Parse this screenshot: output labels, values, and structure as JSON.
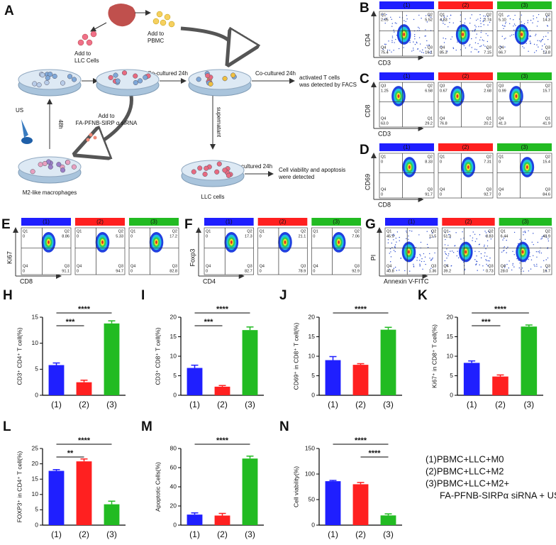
{
  "schematic": {
    "letter": "A",
    "add_llc": [
      "Add to",
      "LLC Cells"
    ],
    "add_pbmc": [
      "Add to",
      "PBMC"
    ],
    "cocultured_1": "Co-cultured 24h",
    "cocultured_2": "Co-cultured 24h",
    "facs": [
      "activated T cells",
      "was detected by FACS"
    ],
    "supernatant": "supernatant",
    "add_sirna": [
      "Add to",
      "FA-PFNB-SIRP α siRNA"
    ],
    "time_48h": "48h",
    "us": "US",
    "macrophages": "M2-like macrophages",
    "cultured": "cultured 24h",
    "viability": [
      "Cell viability and apoptosis",
      "were detected"
    ],
    "llc_cells": "LLC cells"
  },
  "flow": [
    {
      "letter": "B",
      "x_label": "CD3",
      "y_label": "CD4",
      "plots": [
        {
          "group": "(1)",
          "color": "#1f1fff",
          "quadrants": [
            [
              "Q1",
              "2.95"
            ],
            [
              "Q2",
              "5.52"
            ],
            [
              "Q4",
              "75.4"
            ],
            [
              "Q3",
              "16.1"
            ]
          ]
        },
        {
          "group": "(2)",
          "color": "#ff2020",
          "quadrants": [
            [
              "Q1",
              "4.83"
            ],
            [
              "Q2",
              "2.74"
            ],
            [
              "Q4",
              "85.3"
            ],
            [
              "Q3",
              "7.15"
            ]
          ]
        },
        {
          "group": "(3)",
          "color": "#22bb22",
          "quadrants": [
            [
              "Q1",
              "5.10"
            ],
            [
              "Q2",
              "14.3"
            ],
            [
              "Q4",
              "66.7"
            ],
            [
              "Q3",
              "13.8"
            ]
          ]
        }
      ]
    },
    {
      "letter": "C",
      "x_label": "CD3",
      "y_label": "CD8",
      "plots": [
        {
          "group": "(1)",
          "color": "#1f1fff",
          "quadrants": [
            [
              "Q3",
              "1.25"
            ],
            [
              "Q2",
              "6.58"
            ],
            [
              "Q4",
              "63.0"
            ],
            [
              "Q1",
              "29.2"
            ]
          ]
        },
        {
          "group": "(2)",
          "color": "#ff2020",
          "quadrants": [
            [
              "Q3",
              "0.67"
            ],
            [
              "Q2",
              "2.68"
            ],
            [
              "Q4",
              "76.8"
            ],
            [
              "Q1",
              "20.2"
            ]
          ]
        },
        {
          "group": "(3)",
          "color": "#22bb22",
          "quadrants": [
            [
              "Q3",
              "0.99"
            ],
            [
              "Q2",
              "15.7"
            ],
            [
              "Q4",
              "41.3"
            ],
            [
              "Q1",
              "41.9"
            ]
          ]
        }
      ]
    },
    {
      "letter": "D",
      "x_label": "CD8",
      "y_label": "CD69",
      "plots": [
        {
          "group": "(1)",
          "color": "#1f1fff",
          "quadrants": [
            [
              "Q1",
              "0"
            ],
            [
              "Q2",
              "8.33"
            ],
            [
              "Q4",
              "0"
            ],
            [
              "Q3",
              "91.7"
            ]
          ]
        },
        {
          "group": "(2)",
          "color": "#ff2020",
          "quadrants": [
            [
              "Q1",
              "0"
            ],
            [
              "Q2",
              "7.31"
            ],
            [
              "Q4",
              "0"
            ],
            [
              "Q3",
              "92.7"
            ]
          ]
        },
        {
          "group": "(3)",
          "color": "#22bb22",
          "quadrants": [
            [
              "Q1",
              "0"
            ],
            [
              "Q2",
              "15.4"
            ],
            [
              "Q4",
              "0"
            ],
            [
              "Q3",
              "84.6"
            ]
          ]
        }
      ]
    },
    {
      "letter": "E",
      "x_label": "CD8",
      "y_label": "Ki67",
      "plots": [
        {
          "group": "(1)",
          "color": "#1f1fff",
          "quadrants": [
            [
              "Q1",
              "0"
            ],
            [
              "Q2",
              "8.86"
            ],
            [
              "Q4",
              "0"
            ],
            [
              "Q3",
              "91.1"
            ]
          ]
        },
        {
          "group": "(2)",
          "color": "#ff2020",
          "quadrants": [
            [
              "Q1",
              "0"
            ],
            [
              "Q2",
              "5.33"
            ],
            [
              "Q4",
              "0"
            ],
            [
              "Q3",
              "94.7"
            ]
          ]
        },
        {
          "group": "(3)",
          "color": "#22bb22",
          "quadrants": [
            [
              "Q1",
              "0"
            ],
            [
              "Q2",
              "17.2"
            ],
            [
              "Q4",
              "0"
            ],
            [
              "Q3",
              "82.8"
            ]
          ]
        }
      ]
    },
    {
      "letter": "F",
      "x_label": "CD4",
      "y_label": "Foxp3",
      "plots": [
        {
          "group": "(1)",
          "color": "#1f1fff",
          "quadrants": [
            [
              "Q1",
              "0"
            ],
            [
              "Q2",
              "17.3"
            ],
            [
              "Q4",
              "0"
            ],
            [
              "Q3",
              "82.7"
            ]
          ]
        },
        {
          "group": "(2)",
          "color": "#ff2020",
          "quadrants": [
            [
              "Q1",
              "0"
            ],
            [
              "Q2",
              "21.1"
            ],
            [
              "Q4",
              "0"
            ],
            [
              "Q3",
              "78.9"
            ]
          ]
        },
        {
          "group": "(3)",
          "color": "#22bb22",
          "quadrants": [
            [
              "Q1",
              "0"
            ],
            [
              "Q2",
              "7.06"
            ],
            [
              "Q4",
              "0"
            ],
            [
              "Q3",
              "92.9"
            ]
          ]
        }
      ]
    },
    {
      "letter": "G",
      "x_label": "Annexin V-FITC",
      "y_label": "PI",
      "plots": [
        {
          "group": "(1)",
          "color": "#1f1fff",
          "quadrants": [
            [
              "Q1",
              "45.9"
            ],
            [
              "Q2",
              "11.5"
            ],
            [
              "Q4",
              "40.8"
            ],
            [
              "Q3",
              "1.36"
            ]
          ]
        },
        {
          "group": "(2)",
          "color": "#ff2020",
          "quadrants": [
            [
              "Q1",
              "51.3"
            ],
            [
              "Q2",
              "8.83"
            ],
            [
              "Q4",
              "39.2"
            ],
            [
              "Q3",
              "0.73"
            ]
          ]
        },
        {
          "group": "(3)",
          "color": "#22bb22",
          "quadrants": [
            [
              "Q1",
              "6.44"
            ],
            [
              "Q2",
              "48.9"
            ],
            [
              "Q4",
              "28.0"
            ],
            [
              "Q3",
              "16.7"
            ]
          ]
        }
      ]
    }
  ],
  "chart_data": [
    {
      "type": "bar",
      "letter": "H",
      "y_label": "CD3⁺ CD4⁺ T cell(%)",
      "categories": [
        "(1)",
        "(2)",
        "(3)"
      ],
      "values": [
        5.8,
        2.5,
        13.8
      ],
      "errors": [
        0.4,
        0.4,
        0.5
      ],
      "colors": [
        "#1f1fff",
        "#ff2020",
        "#22bb22"
      ],
      "ylim": [
        0,
        15
      ],
      "yticks": [
        0,
        5,
        10,
        15
      ],
      "significance": [
        {
          "between": [
            "(1)",
            "(2)"
          ],
          "label": "***"
        },
        {
          "between": [
            "(1)",
            "(3)"
          ],
          "label": "****"
        }
      ]
    },
    {
      "type": "bar",
      "letter": "I",
      "y_label": "CD3⁺ CD8⁺ T cell(%)",
      "categories": [
        "(1)",
        "(2)",
        "(3)"
      ],
      "values": [
        7.0,
        2.2,
        16.7
      ],
      "errors": [
        0.7,
        0.3,
        0.8
      ],
      "colors": [
        "#1f1fff",
        "#ff2020",
        "#22bb22"
      ],
      "ylim": [
        0,
        20
      ],
      "yticks": [
        0,
        5,
        10,
        15,
        20
      ],
      "significance": [
        {
          "between": [
            "(1)",
            "(2)"
          ],
          "label": "***"
        },
        {
          "between": [
            "(1)",
            "(3)"
          ],
          "label": "****"
        }
      ]
    },
    {
      "type": "bar",
      "letter": "J",
      "y_label": "CD69⁺ in CD8⁺ T cell(%)",
      "categories": [
        "(1)",
        "(2)",
        "(3)"
      ],
      "values": [
        9.0,
        7.8,
        16.8
      ],
      "errors": [
        0.9,
        0.3,
        0.6
      ],
      "colors": [
        "#1f1fff",
        "#ff2020",
        "#22bb22"
      ],
      "ylim": [
        0,
        20
      ],
      "yticks": [
        0,
        5,
        10,
        15,
        20
      ],
      "significance": [
        {
          "between": [
            "(1)",
            "(3)"
          ],
          "label": "****"
        }
      ]
    },
    {
      "type": "bar",
      "letter": "K",
      "y_label": "Ki67⁺ in CD8⁺ T cell(%)",
      "categories": [
        "(1)",
        "(2)",
        "(3)"
      ],
      "values": [
        8.3,
        4.8,
        17.6
      ],
      "errors": [
        0.5,
        0.4,
        0.4
      ],
      "colors": [
        "#1f1fff",
        "#ff2020",
        "#22bb22"
      ],
      "ylim": [
        0,
        20
      ],
      "yticks": [
        0,
        5,
        10,
        15,
        20
      ],
      "significance": [
        {
          "between": [
            "(1)",
            "(2)"
          ],
          "label": "***"
        },
        {
          "between": [
            "(1)",
            "(3)"
          ],
          "label": "****"
        }
      ]
    },
    {
      "type": "bar",
      "letter": "L",
      "y_label": "FOXP3⁺ in CD4⁺ T cell(%)",
      "categories": [
        "(1)",
        "(2)",
        "(3)"
      ],
      "values": [
        17.7,
        20.8,
        6.8
      ],
      "errors": [
        0.4,
        0.8,
        1.0
      ],
      "colors": [
        "#1f1fff",
        "#ff2020",
        "#22bb22"
      ],
      "ylim": [
        0,
        25
      ],
      "yticks": [
        0,
        5,
        10,
        15,
        20,
        25
      ],
      "significance": [
        {
          "between": [
            "(1)",
            "(2)"
          ],
          "label": "**"
        },
        {
          "between": [
            "(1)",
            "(3)"
          ],
          "label": "****"
        }
      ]
    },
    {
      "type": "bar",
      "letter": "M",
      "y_label": "Apoptotic Cells(%)",
      "categories": [
        "(1)",
        "(2)",
        "(3)"
      ],
      "values": [
        11,
        10,
        69.5
      ],
      "errors": [
        1.8,
        2.2,
        2.5
      ],
      "colors": [
        "#1f1fff",
        "#ff2020",
        "#22bb22"
      ],
      "ylim": [
        0,
        80
      ],
      "yticks": [
        0,
        20,
        40,
        60,
        80
      ],
      "significance": [
        {
          "between": [
            "(1)",
            "(3)"
          ],
          "label": "****"
        }
      ]
    },
    {
      "type": "bar",
      "letter": "N",
      "y_label": "Cell viability(%)",
      "categories": [
        "(1)",
        "(2)",
        "(3)"
      ],
      "values": [
        86,
        80,
        19
      ],
      "errors": [
        1.5,
        3.5,
        3
      ],
      "colors": [
        "#1f1fff",
        "#ff2020",
        "#22bb22"
      ],
      "ylim": [
        0,
        150
      ],
      "yticks": [
        0,
        50,
        100,
        150
      ],
      "significance": [
        {
          "between": [
            "(2)",
            "(3)"
          ],
          "label": "****"
        },
        {
          "between": [
            "(1)",
            "(3)"
          ],
          "label": "****"
        }
      ]
    }
  ],
  "legend": [
    {
      "text": "(1)PBMC+LLC+M0",
      "color": "#1f1fff"
    },
    {
      "text": "(2)PBMC+LLC+M2",
      "color": "#ff2020"
    },
    {
      "text": "(3)PBMC+LLC+M2+",
      "color": "#22bb22"
    },
    {
      "text": "FA-PFNB-SIRPα siRNA + US",
      "color": "#22bb22"
    }
  ]
}
